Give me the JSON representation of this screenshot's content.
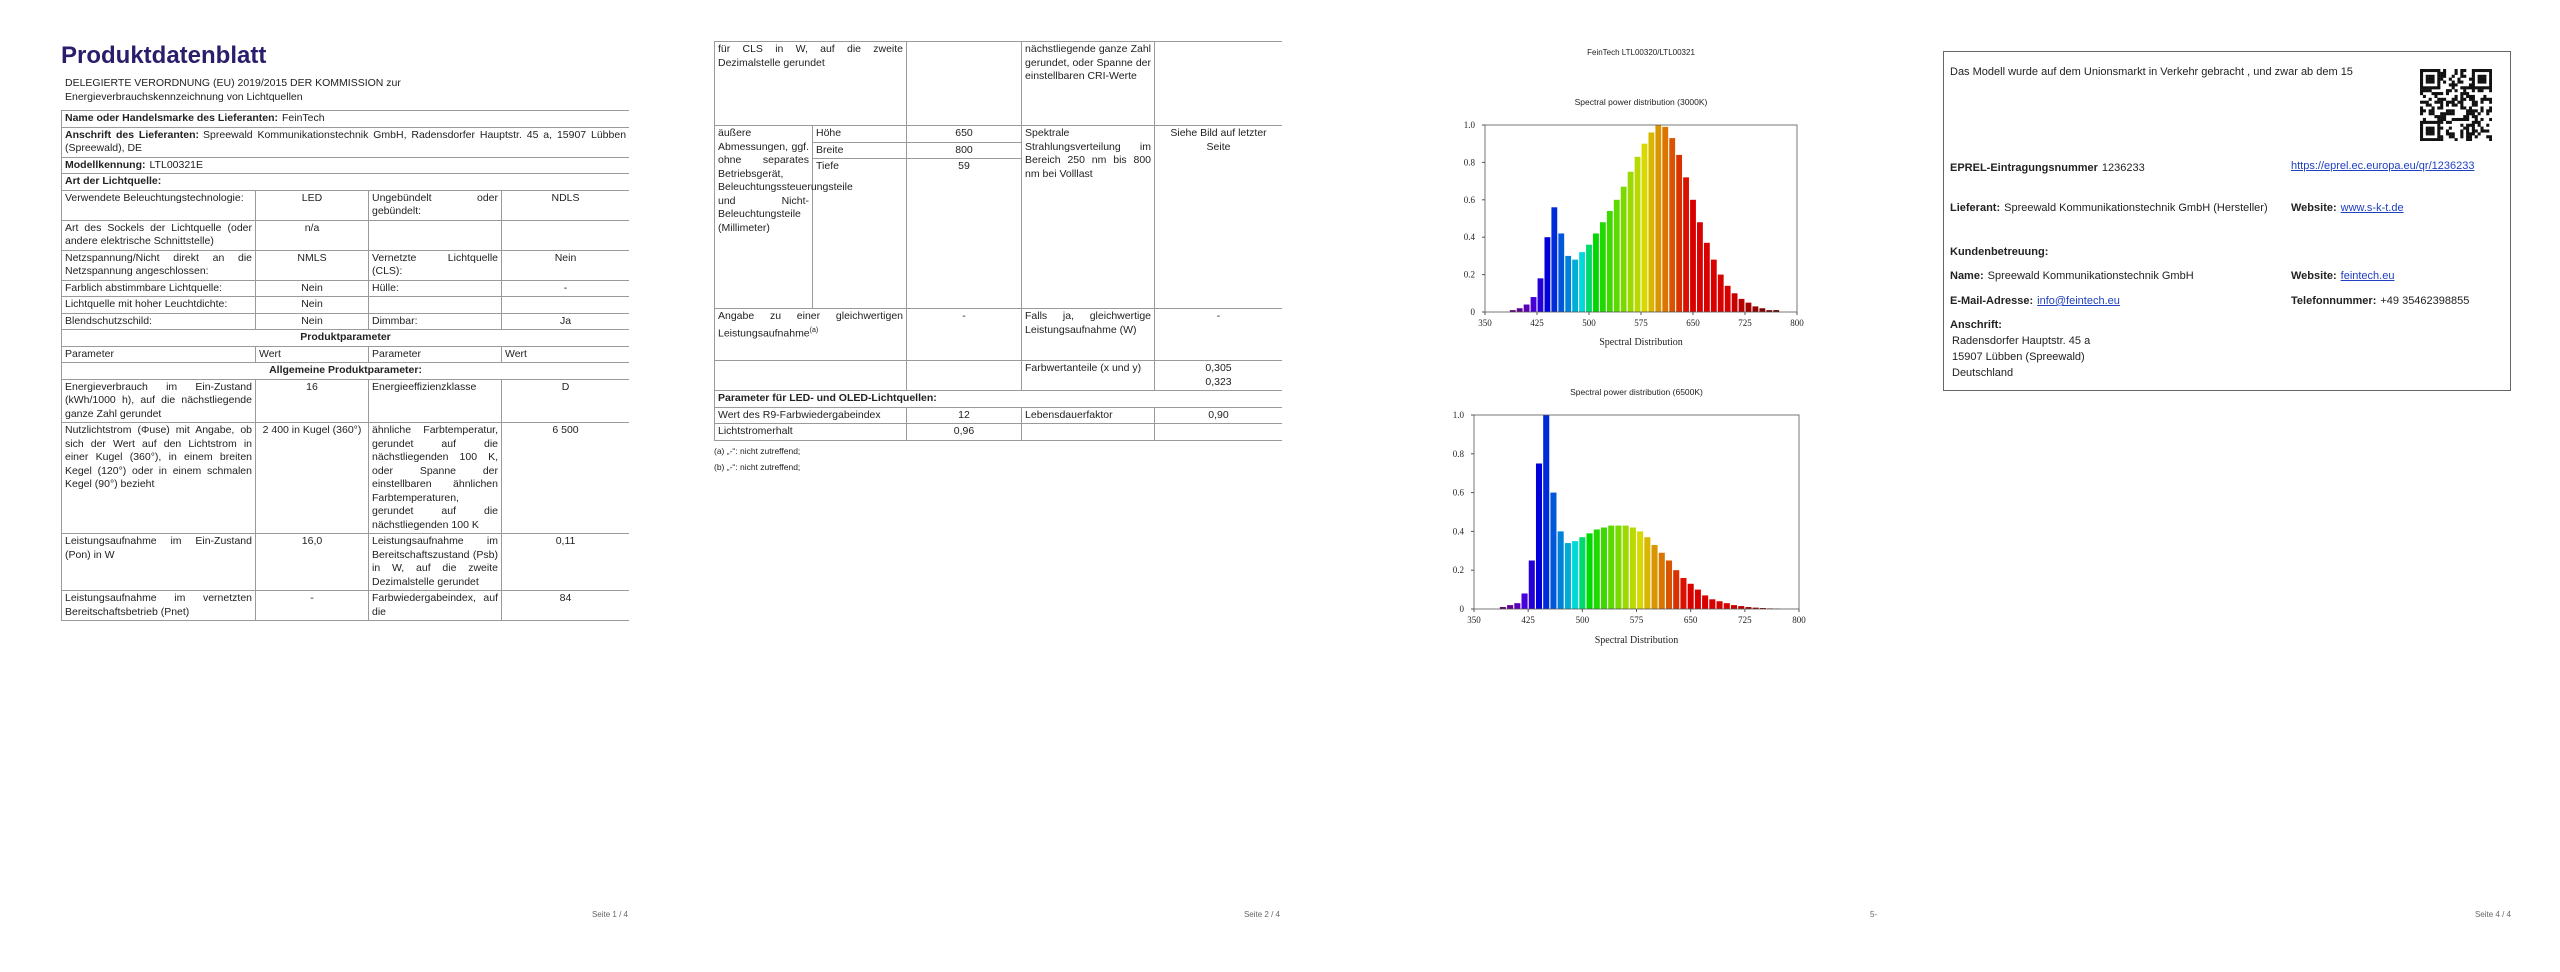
{
  "page1": {
    "title": "Produktdatenblatt",
    "subtitle": "DELEGIERTE VERORDNUNG (EU) 2019/2015 DER KOMMISSION zur Energieverbrauchskennzeichnung von Lichtquellen",
    "supplier": {
      "label": "Name oder Handelsmarke des Lieferanten:",
      "value": "FeinTech"
    },
    "address": {
      "label": "Anschrift des Lieferanten:",
      "value": "Spreewald Kommunikationstechnik GmbH, Radensdorfer Hauptstr. 45 a, 15907 Lübben (Spreewald), DE"
    },
    "model": {
      "label": "Modellkennung:",
      "value": "LTL00321E"
    },
    "light_source_type": "Art der Lichtquelle:",
    "type_rows": [
      [
        "Verwendete Beleuchtungstechnologie:",
        "LED",
        "Ungebündelt oder gebündelt:",
        "NDLS"
      ],
      [
        "Art des Sockels der Lichtquelle (oder andere elektrische Schnittstelle)",
        "n/a"
      ],
      [
        "Netzspannung/Nicht direkt an die Netzspannung angeschlossen:",
        "NMLS",
        "Vernetzte Lichtquelle (CLS):",
        "Nein"
      ],
      [
        "Farblich abstimmbare Lichtquelle:",
        "Nein",
        "Hülle:",
        "-"
      ],
      [
        "Lichtquelle mit hoher Leuchtdichte:",
        "Nein"
      ],
      [
        "Blendschutzschild:",
        "Nein",
        "Dimmbar:",
        "Ja"
      ]
    ],
    "product_parameters": "Produktparameter",
    "columns": [
      "Parameter",
      "Wert",
      "Parameter",
      "Wert"
    ],
    "general": "Allgemeine Produktparameter:",
    "param_rows": [
      [
        "Energieverbrauch im Ein-Zustand (kWh/1000 h), auf die nächstliegende ganze Zahl gerundet",
        "16",
        "Energieeffizienzklasse",
        "D"
      ],
      [
        "Nutzlichtstrom (Φuse) mit Angabe, ob sich der Wert auf den Lichtstrom in einer Kugel (360°), in einem breiten Kegel (120°) oder in einem schmalen Kegel (90°) bezieht",
        "2 400 in Kugel (360°)",
        "ähnliche Farbtemperatur, gerundet auf die nächstliegenden 100 K, oder Spanne der einstellbaren ähnlichen Farbtemperaturen, gerundet auf die nächstliegenden 100 K",
        "6 500"
      ],
      [
        "Leistungsaufnahme im Ein-Zustand (Pon) in W",
        "16,0",
        "Leistungsaufnahme im Bereitschaftszustand (Psb) in W, auf die zweite Dezimalstelle gerundet",
        "0,11"
      ],
      [
        "Leistungsaufnahme im vernetzten Bereitschaftsbetrieb (Pnet)",
        "-",
        "Farbwiedergabeindex, auf die",
        "84"
      ]
    ],
    "footer": "Seite 1 / 4"
  },
  "page2": {
    "cls_cont": "für CLS in W, auf die zweite Dezimalstelle gerundet",
    "cri_cont": "nächstliegende ganze Zahl gerundet, oder Spanne der einstellbaren CRI-Werte",
    "dimensions": {
      "label": "äußere Abmessungen, ggf. ohne separates Betriebsgerät, Beleuchtungssteuerungsteile und Nicht-Beleuchtungsteile (Millimeter)",
      "items": [
        {
          "name": "Höhe",
          "value": "650"
        },
        {
          "name": "Breite",
          "value": "800"
        },
        {
          "name": "Tiefe",
          "value": "59"
        }
      ]
    },
    "spectral": {
      "label": "Spektrale Strahlungsverteilung im Bereich 250 nm bis 800 nm bei Volllast",
      "value": "Siehe Bild auf letzter Seite"
    },
    "equivalent": {
      "label": "Angabe zu einer gleichwertigen Leistungsaufnahme",
      "note": "(a)",
      "value": "-"
    },
    "equiv_power": {
      "label": "Falls ja, gleichwertige Leistungsaufnahme (W)",
      "value": "-"
    },
    "chromaticity": {
      "label": "Farbwertanteile (x und y)",
      "x": "0,305",
      "y": "0,323"
    },
    "led_section": "Parameter für LED- und OLED-Lichtquellen:",
    "r9": {
      "label": "Wert des R9-Farbwiedergabeindex",
      "value": "12"
    },
    "lifetime": {
      "label": "Lebensdauerfaktor",
      "value": "0,90"
    },
    "maintenance": {
      "label": "Lichtstromerhalt",
      "value": "0,96"
    },
    "footnotes": [
      "(a) „-“: nicht zutreffend;",
      "(b) „-“: nicht zutreffend;"
    ],
    "footer": "Seite 2 / 4"
  },
  "page3": {
    "header": "FeinTech LTL00320/LTL00321",
    "footer": "5-"
  },
  "chart_data": [
    {
      "type": "bar",
      "title": "Spectral power distribution (3000K)",
      "x_label": "Spectral Distribution",
      "x": [
        380,
        390,
        400,
        410,
        420,
        430,
        440,
        450,
        460,
        470,
        480,
        490,
        500,
        510,
        520,
        530,
        540,
        550,
        560,
        570,
        580,
        590,
        600,
        610,
        620,
        630,
        640,
        650,
        660,
        670,
        680,
        690,
        700,
        710,
        720,
        730,
        740,
        750,
        760,
        770,
        780
      ],
      "values": [
        0,
        0.01,
        0.02,
        0.04,
        0.08,
        0.18,
        0.4,
        0.56,
        0.42,
        0.3,
        0.28,
        0.32,
        0.36,
        0.42,
        0.48,
        0.54,
        0.6,
        0.67,
        0.75,
        0.83,
        0.9,
        0.96,
        1.0,
        0.99,
        0.93,
        0.84,
        0.72,
        0.6,
        0.48,
        0.37,
        0.28,
        0.2,
        0.14,
        0.1,
        0.07,
        0.05,
        0.03,
        0.02,
        0.01,
        0.01,
        0
      ],
      "xlim": [
        350,
        800
      ],
      "ylim": [
        0,
        1
      ],
      "xticks": [
        350,
        425,
        500,
        575,
        650,
        725,
        800
      ],
      "yticks": [
        0,
        0.2,
        0.4,
        0.6,
        0.8,
        {
          "value": 1,
          "label": "1.0"
        }
      ],
      "grid": false
    },
    {
      "type": "bar",
      "title": "Spectral power distribution (6500K)",
      "x_label": "Spectral Distribution",
      "x": [
        380,
        390,
        400,
        410,
        420,
        430,
        440,
        450,
        460,
        470,
        480,
        490,
        500,
        510,
        520,
        530,
        540,
        550,
        560,
        570,
        580,
        590,
        600,
        610,
        620,
        630,
        640,
        650,
        660,
        670,
        680,
        690,
        700,
        710,
        720,
        730,
        740,
        750,
        760,
        770,
        780
      ],
      "values": [
        0,
        0.01,
        0.02,
        0.03,
        0.08,
        0.25,
        0.75,
        1.0,
        0.6,
        0.4,
        0.34,
        0.35,
        0.37,
        0.39,
        0.41,
        0.42,
        0.43,
        0.43,
        0.43,
        0.42,
        0.4,
        0.37,
        0.33,
        0.29,
        0.25,
        0.2,
        0.16,
        0.13,
        0.1,
        0.07,
        0.05,
        0.04,
        0.03,
        0.02,
        0.015,
        0.01,
        0.007,
        0.005,
        0.003,
        0.002,
        0
      ],
      "xlim": [
        350,
        800
      ],
      "ylim": [
        0,
        1
      ],
      "xticks": [
        350,
        425,
        500,
        575,
        650,
        725,
        800
      ],
      "yticks": [
        0,
        0.2,
        0.4,
        0.6,
        0.8,
        {
          "value": 1,
          "label": "1.0"
        }
      ],
      "grid": false
    }
  ],
  "page4": {
    "intro": "Das Modell wurde auf dem Unionsmarkt in Verkehr gebracht , und zwar ab dem 15",
    "eprel": {
      "label": "EPREL-Eintragungsnummer",
      "value": "1236233"
    },
    "eprel_link": "https://eprel.ec.europa.eu/qr/1236233",
    "supplier": {
      "label": "Lieferant:",
      "value": "Spreewald Kommunikationstechnik GmbH (Hersteller)"
    },
    "supplier_website": {
      "label": "Website:",
      "value": "www.s-k-t.de"
    },
    "support": "Kundenbetreuung:",
    "name": {
      "label": "Name:",
      "value": "Spreewald Kommunikationstechnik GmbH"
    },
    "support_website": {
      "label": "Website:",
      "value": "feintech.eu"
    },
    "email": {
      "label": "E-Mail-Adresse:",
      "value": "info@feintech.eu"
    },
    "phone": {
      "label": "Telefonnummer:",
      "value": "+49 35462398855"
    },
    "address": {
      "label": "Anschrift:",
      "lines": [
        "Radensdorfer Hauptstr. 45 a",
        "15907 Lübben (Spreewald)",
        "Deutschland"
      ]
    },
    "footer": "Seite 4 / 4"
  }
}
